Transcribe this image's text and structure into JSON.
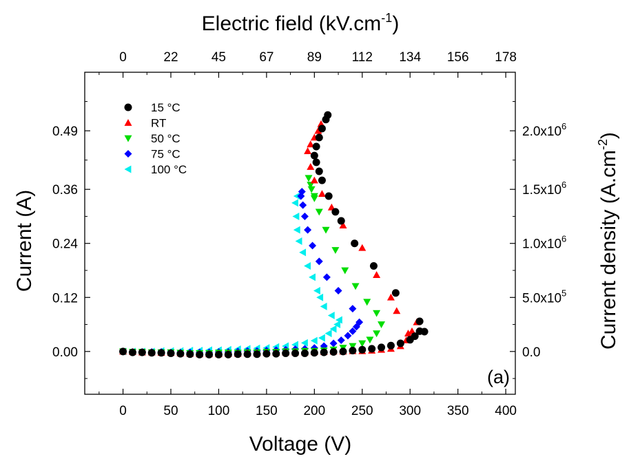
{
  "chart_data": {
    "type": "scatter",
    "xlabel": "Voltage (V)",
    "ylabel": "Current (A)",
    "x2label": "Electric field (kV.cm",
    "x2label_sup": "-1",
    "x2label_end": ")",
    "y2label": "Current density (A.cm",
    "y2label_sup": "-2",
    "y2label_end": ")",
    "panel_label": "(a)",
    "xlim": [
      -40,
      410
    ],
    "ylim": [
      -0.095,
      0.62
    ],
    "x_ticks": [
      0,
      50,
      100,
      150,
      200,
      250,
      300,
      350,
      400
    ],
    "x_tick_labels": [
      "0",
      "50",
      "100",
      "150",
      "200",
      "250",
      "300",
      "350",
      "400"
    ],
    "y_ticks": [
      0.0,
      0.12,
      0.24,
      0.36,
      0.49
    ],
    "y_tick_labels": [
      "0.00",
      "0.12",
      "0.24",
      "0.36",
      "0.49"
    ],
    "x2_ticks": [
      0,
      22,
      45,
      67,
      89,
      112,
      134,
      156,
      178
    ],
    "x2_tick_labels": [
      "0",
      "22",
      "45",
      "67",
      "89",
      "112",
      "134",
      "156",
      "178"
    ],
    "x2_tick_positions_voltage": [
      0,
      50,
      100,
      150,
      200,
      250,
      300,
      350,
      400
    ],
    "y2_ticks": [
      0.0,
      0.12,
      0.24,
      0.36,
      0.49
    ],
    "y2_tick_labels": [
      {
        "mant": "0.0",
        "exp": ""
      },
      {
        "mant": "5.0x10",
        "exp": "5"
      },
      {
        "mant": "1.0x10",
        "exp": "6"
      },
      {
        "mant": "1.5x10",
        "exp": "6"
      },
      {
        "mant": "2.0x10",
        "exp": "6"
      }
    ],
    "legend_position": "top-left",
    "grid": false,
    "series": [
      {
        "name": "15 °C",
        "marker": "circle",
        "color": "#000000",
        "points": [
          [
            0,
            0.0
          ],
          [
            10,
            -0.002
          ],
          [
            20,
            -0.002
          ],
          [
            30,
            -0.003
          ],
          [
            40,
            -0.003
          ],
          [
            50,
            -0.004
          ],
          [
            60,
            -0.005
          ],
          [
            70,
            -0.006
          ],
          [
            80,
            -0.007
          ],
          [
            90,
            -0.007
          ],
          [
            100,
            -0.007
          ],
          [
            110,
            -0.007
          ],
          [
            120,
            -0.006
          ],
          [
            130,
            -0.006
          ],
          [
            140,
            -0.006
          ],
          [
            150,
            -0.005
          ],
          [
            160,
            -0.005
          ],
          [
            170,
            -0.004
          ],
          [
            180,
            -0.004
          ],
          [
            190,
            -0.004
          ],
          [
            200,
            -0.003
          ],
          [
            210,
            -0.002
          ],
          [
            220,
            -0.001
          ],
          [
            230,
            0.0
          ],
          [
            240,
            0.002
          ],
          [
            250,
            0.004
          ],
          [
            260,
            0.006
          ],
          [
            270,
            0.009
          ],
          [
            280,
            0.013
          ],
          [
            290,
            0.018
          ],
          [
            300,
            0.026
          ],
          [
            305,
            0.034
          ],
          [
            310,
            0.045
          ],
          [
            315,
            0.044
          ],
          [
            310,
            0.067
          ],
          [
            285,
            0.13
          ],
          [
            262,
            0.19
          ],
          [
            242,
            0.24
          ],
          [
            228,
            0.29
          ],
          [
            222,
            0.31
          ],
          [
            215,
            0.345
          ],
          [
            208,
            0.38
          ],
          [
            205,
            0.4
          ],
          [
            202,
            0.42
          ],
          [
            200,
            0.435
          ],
          [
            202,
            0.455
          ],
          [
            205,
            0.475
          ],
          [
            208,
            0.495
          ],
          [
            212,
            0.515
          ],
          [
            214,
            0.525
          ]
        ]
      },
      {
        "name": "RT",
        "marker": "triangle-up",
        "color": "#ff0000",
        "points": [
          [
            0,
            0.0
          ],
          [
            10,
            -0.001
          ],
          [
            20,
            -0.002
          ],
          [
            30,
            -0.002
          ],
          [
            40,
            -0.003
          ],
          [
            50,
            -0.003
          ],
          [
            60,
            -0.004
          ],
          [
            70,
            -0.005
          ],
          [
            80,
            -0.006
          ],
          [
            90,
            -0.006
          ],
          [
            100,
            -0.006
          ],
          [
            110,
            -0.005
          ],
          [
            120,
            -0.005
          ],
          [
            130,
            -0.004
          ],
          [
            140,
            -0.004
          ],
          [
            150,
            -0.003
          ],
          [
            160,
            -0.003
          ],
          [
            170,
            -0.002
          ],
          [
            180,
            -0.002
          ],
          [
            190,
            -0.002
          ],
          [
            200,
            -0.001
          ],
          [
            210,
            -0.001
          ],
          [
            220,
            0.0
          ],
          [
            230,
            0.0
          ],
          [
            240,
            0.001
          ],
          [
            250,
            0.001
          ],
          [
            260,
            0.002
          ],
          [
            270,
            0.004
          ],
          [
            280,
            0.006
          ],
          [
            290,
            0.012
          ],
          [
            296,
            0.025
          ],
          [
            302,
            0.045
          ],
          [
            307,
            0.065
          ],
          [
            298,
            0.04
          ],
          [
            286,
            0.09
          ],
          [
            280,
            0.12
          ],
          [
            265,
            0.17
          ],
          [
            250,
            0.23
          ],
          [
            230,
            0.28
          ],
          [
            218,
            0.32
          ],
          [
            208,
            0.35
          ],
          [
            200,
            0.38
          ],
          [
            196,
            0.41
          ],
          [
            193,
            0.445
          ],
          [
            196,
            0.46
          ],
          [
            200,
            0.475
          ],
          [
            204,
            0.49
          ],
          [
            207,
            0.505
          ]
        ]
      },
      {
        "name": "50 °C",
        "marker": "triangle-down",
        "color": "#00dd00",
        "points": [
          [
            0,
            0.0
          ],
          [
            10,
            -0.001
          ],
          [
            20,
            -0.001
          ],
          [
            30,
            -0.002
          ],
          [
            40,
            -0.002
          ],
          [
            50,
            -0.002
          ],
          [
            60,
            -0.003
          ],
          [
            70,
            -0.004
          ],
          [
            80,
            -0.004
          ],
          [
            90,
            -0.004
          ],
          [
            100,
            -0.003
          ],
          [
            110,
            -0.003
          ],
          [
            120,
            -0.003
          ],
          [
            130,
            -0.002
          ],
          [
            140,
            -0.002
          ],
          [
            150,
            -0.001
          ],
          [
            160,
            -0.001
          ],
          [
            170,
            0.0
          ],
          [
            180,
            0.0
          ],
          [
            190,
            0.001
          ],
          [
            200,
            0.001
          ],
          [
            210,
            0.002
          ],
          [
            220,
            0.004
          ],
          [
            230,
            0.008
          ],
          [
            240,
            0.012
          ],
          [
            250,
            0.018
          ],
          [
            258,
            0.026
          ],
          [
            265,
            0.04
          ],
          [
            270,
            0.06
          ],
          [
            265,
            0.085
          ],
          [
            255,
            0.11
          ],
          [
            243,
            0.145
          ],
          [
            232,
            0.18
          ],
          [
            222,
            0.225
          ],
          [
            212,
            0.27
          ],
          [
            205,
            0.31
          ],
          [
            200,
            0.345
          ],
          [
            196,
            0.37
          ],
          [
            194,
            0.385
          ],
          [
            197,
            0.36
          ],
          [
            200,
            0.34
          ]
        ]
      },
      {
        "name": "75 °C",
        "marker": "diamond",
        "color": "#0000ff",
        "points": [
          [
            0,
            0.0
          ],
          [
            10,
            -0.001
          ],
          [
            20,
            -0.001
          ],
          [
            30,
            -0.001
          ],
          [
            40,
            -0.001
          ],
          [
            50,
            -0.002
          ],
          [
            60,
            -0.002
          ],
          [
            70,
            -0.002
          ],
          [
            80,
            -0.002
          ],
          [
            90,
            -0.002
          ],
          [
            100,
            -0.001
          ],
          [
            110,
            -0.001
          ],
          [
            120,
            0.0
          ],
          [
            130,
            0.001
          ],
          [
            140,
            0.001
          ],
          [
            150,
            0.002
          ],
          [
            160,
            0.003
          ],
          [
            170,
            0.004
          ],
          [
            180,
            0.005
          ],
          [
            190,
            0.006
          ],
          [
            200,
            0.008
          ],
          [
            210,
            0.012
          ],
          [
            220,
            0.018
          ],
          [
            228,
            0.025
          ],
          [
            235,
            0.035
          ],
          [
            240,
            0.045
          ],
          [
            244,
            0.055
          ],
          [
            247,
            0.065
          ],
          [
            240,
            0.095
          ],
          [
            225,
            0.135
          ],
          [
            213,
            0.165
          ],
          [
            205,
            0.2
          ],
          [
            198,
            0.235
          ],
          [
            193,
            0.27
          ],
          [
            190,
            0.3
          ],
          [
            188,
            0.325
          ],
          [
            186,
            0.345
          ],
          [
            187,
            0.355
          ]
        ]
      },
      {
        "name": "100 °C",
        "marker": "triangle-left",
        "color": "#00eeee",
        "points": [
          [
            0,
            0.0
          ],
          [
            10,
            0.0
          ],
          [
            20,
            0.0
          ],
          [
            30,
            0.0
          ],
          [
            40,
            0.001
          ],
          [
            50,
            0.001
          ],
          [
            60,
            0.001
          ],
          [
            70,
            0.002
          ],
          [
            80,
            0.002
          ],
          [
            90,
            0.003
          ],
          [
            100,
            0.003
          ],
          [
            110,
            0.004
          ],
          [
            120,
            0.005
          ],
          [
            130,
            0.006
          ],
          [
            140,
            0.007
          ],
          [
            150,
            0.008
          ],
          [
            160,
            0.01
          ],
          [
            170,
            0.012
          ],
          [
            180,
            0.015
          ],
          [
            190,
            0.019
          ],
          [
            200,
            0.024
          ],
          [
            208,
            0.03
          ],
          [
            215,
            0.04
          ],
          [
            220,
            0.05
          ],
          [
            224,
            0.06
          ],
          [
            226,
            0.07
          ],
          [
            218,
            0.08
          ],
          [
            210,
            0.1
          ],
          [
            206,
            0.12
          ],
          [
            203,
            0.135
          ],
          [
            198,
            0.165
          ],
          [
            193,
            0.19
          ],
          [
            188,
            0.22
          ],
          [
            184,
            0.245
          ],
          [
            182,
            0.27
          ],
          [
            181,
            0.3
          ],
          [
            180,
            0.33
          ],
          [
            182,
            0.345
          ]
        ]
      }
    ]
  }
}
